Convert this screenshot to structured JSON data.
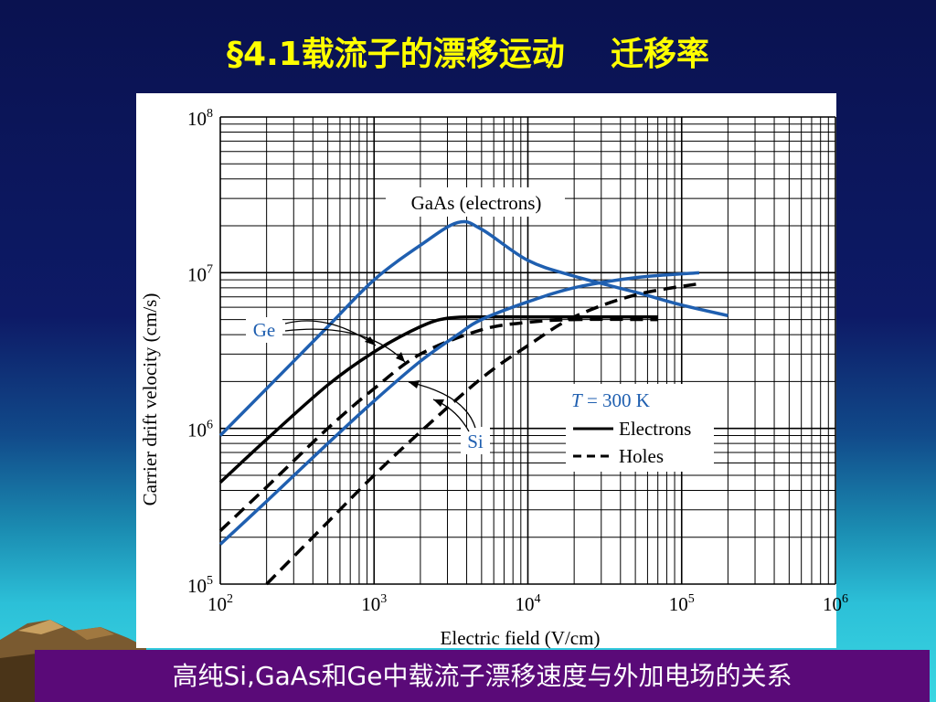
{
  "slide": {
    "title_num": "§4.1",
    "title_text": "载流子的漂移运动",
    "title_gap": "    ",
    "title_text2": "迁移率",
    "caption": "高纯Si,GaAs和Ge中载流子漂移速度与外加电场的关系"
  },
  "colors": {
    "blue_curve": "#1f5fb0",
    "black_curve": "#000000",
    "grid": "#000000",
    "title": "#ffff00",
    "caption_bg": "#5a0a78"
  },
  "chart_data": {
    "type": "line",
    "xscale": "log",
    "yscale": "log",
    "xlim": [
      100,
      1000000
    ],
    "ylim": [
      100000,
      100000000
    ],
    "xlabel": "Electric field (V/cm)",
    "ylabel": "Carrier drift velocity (cm/s)",
    "grid": true,
    "x_ticks": [
      {
        "base": "10",
        "exp": "2"
      },
      {
        "base": "10",
        "exp": "3"
      },
      {
        "base": "10",
        "exp": "4"
      },
      {
        "base": "10",
        "exp": "5"
      },
      {
        "base": "10",
        "exp": "6"
      }
    ],
    "y_ticks": [
      {
        "base": "10",
        "exp": "5"
      },
      {
        "base": "10",
        "exp": "6"
      },
      {
        "base": "10",
        "exp": "7"
      },
      {
        "base": "10",
        "exp": "8"
      }
    ],
    "legend": {
      "temp_T": "T",
      "temp_rest": " = 300 K",
      "electrons": "Electrons",
      "holes": "Holes"
    },
    "annotations": {
      "gaas": "GaAs (electrons)",
      "ge": "Ge",
      "si": "Si"
    },
    "series": [
      {
        "material": "GaAs",
        "carrier": "electrons",
        "color": "blue",
        "style": "solid",
        "x": [
          100,
          200,
          500,
          1000,
          2000,
          3500,
          5000,
          10000,
          20000,
          50000,
          100000,
          200000
        ],
        "y": [
          900000,
          1800000,
          4500000,
          9000000,
          15000000,
          21000000,
          19000000,
          12000000,
          9500000,
          7500000,
          6200000,
          5300000
        ]
      },
      {
        "material": "Ge",
        "carrier": "electrons",
        "color": "black",
        "style": "solid",
        "x": [
          100,
          200,
          500,
          1000,
          2000,
          3000,
          5000,
          10000,
          70000
        ],
        "y": [
          450000,
          850000,
          1900000,
          3100000,
          4500000,
          5100000,
          5200000,
          5200000,
          5200000
        ]
      },
      {
        "material": "Ge",
        "carrier": "holes",
        "color": "black",
        "style": "dashed",
        "x": [
          100,
          200,
          500,
          1000,
          2000,
          5000,
          10000,
          20000,
          70000
        ],
        "y": [
          220000,
          420000,
          1000000,
          1800000,
          3000000,
          4300000,
          4800000,
          5000000,
          5000000
        ]
      },
      {
        "material": "Si",
        "carrier": "electrons",
        "color": "blue",
        "style": "solid",
        "x": [
          100,
          200,
          500,
          1000,
          2000,
          3500,
          5000,
          10000,
          20000,
          50000,
          130000
        ],
        "y": [
          180000,
          340000,
          800000,
          1500000,
          2700000,
          4000000,
          5000000,
          6500000,
          8000000,
          9300000,
          10000000
        ]
      },
      {
        "material": "Si",
        "carrier": "holes",
        "color": "black",
        "style": "dashed",
        "x": [
          200,
          500,
          1000,
          2000,
          5000,
          10000,
          20000,
          50000,
          130000
        ],
        "y": [
          100000,
          250000,
          500000,
          950000,
          2100000,
          3400000,
          5200000,
          7200000,
          8500000
        ]
      }
    ]
  }
}
